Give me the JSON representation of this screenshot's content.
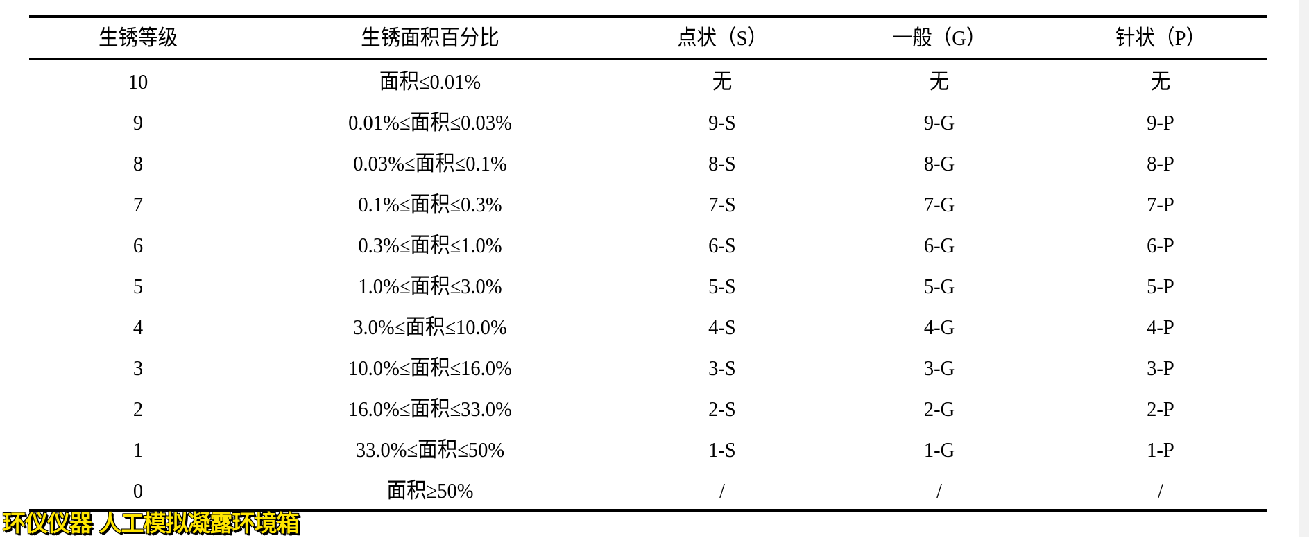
{
  "table": {
    "headers": [
      "生锈等级",
      "生锈面积百分比",
      "点状（S）",
      "一般（G）",
      "针状（P）"
    ],
    "rows": [
      [
        "10",
        "面积≤0.01%",
        "无",
        "无",
        "无"
      ],
      [
        "9",
        "0.01%≤面积≤0.03%",
        "9-S",
        "9-G",
        "9-P"
      ],
      [
        "8",
        "0.03%≤面积≤0.1%",
        "8-S",
        "8-G",
        "8-P"
      ],
      [
        "7",
        "0.1%≤面积≤0.3%",
        "7-S",
        "7-G",
        "7-P"
      ],
      [
        "6",
        "0.3%≤面积≤1.0%",
        "6-S",
        "6-G",
        "6-P"
      ],
      [
        "5",
        "1.0%≤面积≤3.0%",
        "5-S",
        "5-G",
        "5-P"
      ],
      [
        "4",
        "3.0%≤面积≤10.0%",
        "4-S",
        "4-G",
        "4-P"
      ],
      [
        "3",
        "10.0%≤面积≤16.0%",
        "3-S",
        "3-G",
        "3-P"
      ],
      [
        "2",
        "16.0%≤面积≤33.0%",
        "2-S",
        "2-G",
        "2-P"
      ],
      [
        "1",
        "33.0%≤面积≤50%",
        "1-S",
        "1-G",
        "1-P"
      ],
      [
        "0",
        "面积≥50%",
        "/",
        "/",
        "/"
      ]
    ]
  },
  "watermark": {
    "text": "环仪仪器 人工模拟凝露环境箱",
    "color": "#ffe600"
  }
}
